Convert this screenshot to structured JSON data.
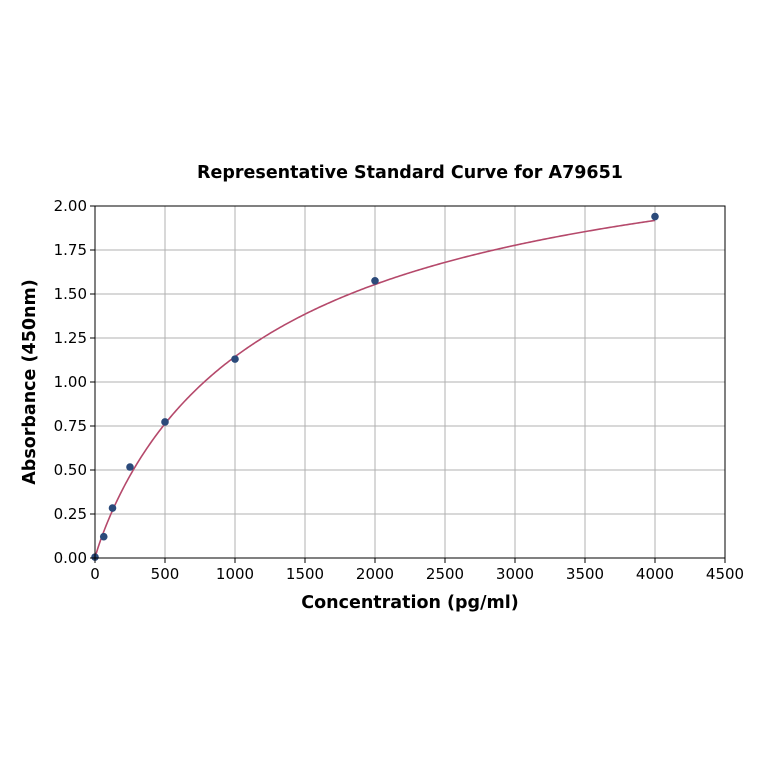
{
  "chart_data": {
    "type": "scatter",
    "title": "Representative Standard Curve for A79651",
    "xlabel": "Concentration (pg/ml)",
    "ylabel": "Absorbance (450nm)",
    "xlim": [
      0,
      4500
    ],
    "ylim": [
      0,
      2.0
    ],
    "xticks": [
      "0",
      "500",
      "1000",
      "1500",
      "2000",
      "2500",
      "3000",
      "3500",
      "4000",
      "4500"
    ],
    "yticks": [
      "0.00",
      "0.25",
      "0.50",
      "0.75",
      "1.00",
      "1.25",
      "1.50",
      "1.75",
      "2.00"
    ],
    "grid": true,
    "points": {
      "x": [
        0,
        62.5,
        125,
        250,
        500,
        1000,
        2000,
        4000
      ],
      "y": [
        0.005,
        0.121,
        0.284,
        0.517,
        0.773,
        1.13,
        1.575,
        1.94
      ]
    },
    "fit_curve": true,
    "colors": {
      "points": "#2b4a7a",
      "curve": "#b5496b",
      "grid": "#b0b0b0"
    }
  }
}
